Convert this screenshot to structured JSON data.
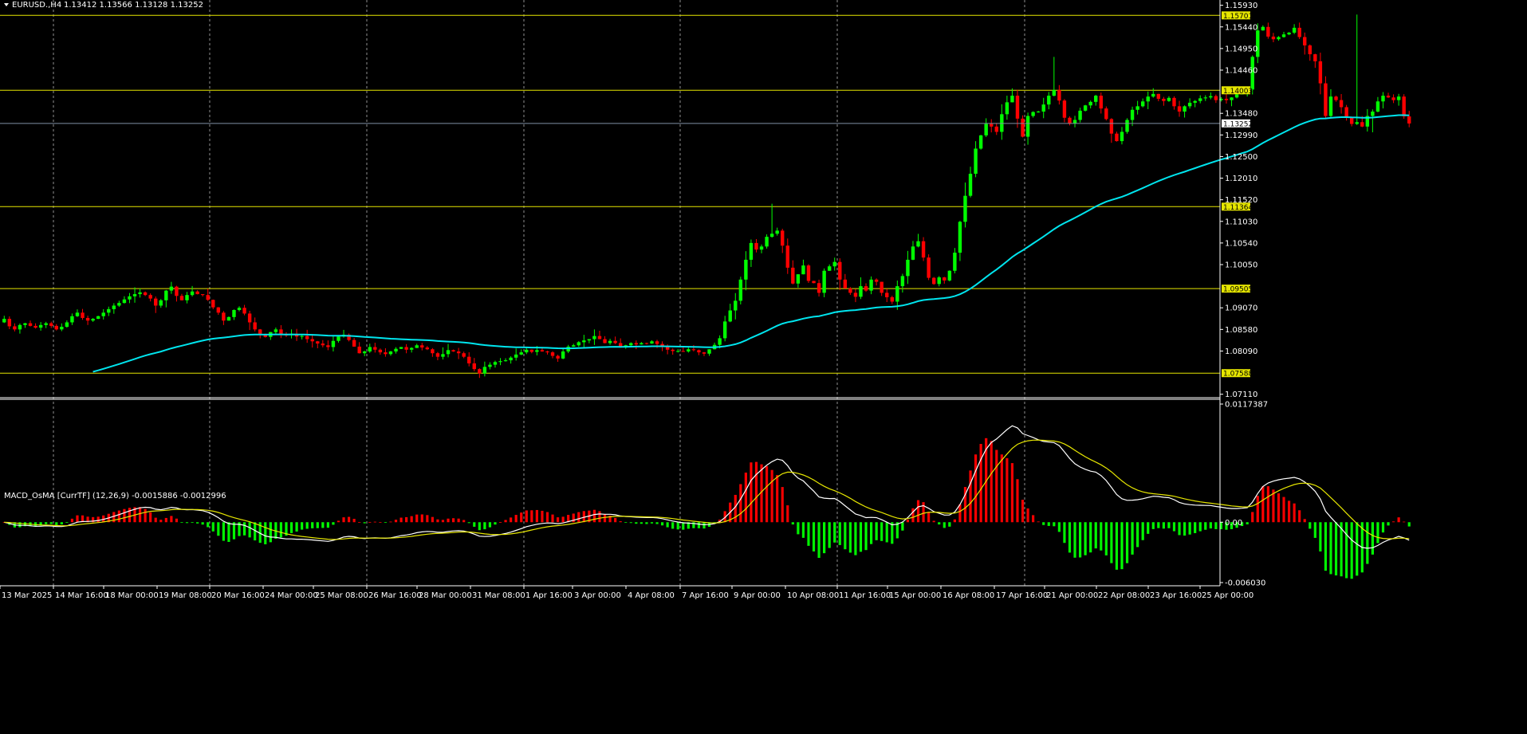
{
  "header": {
    "symbol": "EURUSD.,H4",
    "quote": "1.13412 1.13566 1.13128 1.13252"
  },
  "indicator": {
    "label": "MACD_OsMA [CurrTF] (12,26,9) -0.0015886 -0.0012996"
  },
  "colors": {
    "background": "#000000",
    "bull": "#00ff00",
    "bear": "#ff0000",
    "ma": "#00e5ee",
    "level": "#e6e600",
    "price_line": "#7f8fa6",
    "macd_line": "#ffffff",
    "signal_line": "#e6e600",
    "grid": "#c0c0c0"
  },
  "chart_data": [
    {
      "type": "candlestick",
      "symbol": "EURUSD.",
      "timeframe": "H4",
      "y_tick_labels": [
        "1.15930",
        "1.15440",
        "1.14950",
        "1.14460",
        "1.13480",
        "1.12990",
        "1.12500",
        "1.12010",
        "1.11520",
        "1.11030",
        "1.10540",
        "1.10050",
        "1.09070",
        "1.08580",
        "1.08090",
        "1.07110"
      ],
      "ylim": [
        1.0705,
        1.1605
      ],
      "x_tick_labels": [
        "13 Mar 2025",
        "14 Mar 16:00",
        "18 Mar 00:00",
        "19 Mar 08:00",
        "20 Mar 16:00",
        "24 Mar 00:00",
        "25 Mar 08:00",
        "26 Mar 16:00",
        "28 Mar 00:00",
        "31 Mar 08:00",
        "1 Apr 16:00",
        "3 Apr 00:00",
        "4 Apr 08:00",
        "7 Apr 16:00",
        "9 Apr 00:00",
        "10 Apr 08:00",
        "11 Apr 16:00",
        "15 Apr 00:00",
        "16 Apr 08:00",
        "17 Apr 16:00",
        "21 Apr 00:00",
        "22 Apr 08:00",
        "23 Apr 16:00",
        "25 Apr 00:00"
      ],
      "horizontal_levels": [
        {
          "label": "1.15701",
          "value": 1.15701
        },
        {
          "label": "1.14003",
          "value": 1.14003
        },
        {
          "label": "1.11364",
          "value": 1.11364
        },
        {
          "label": "1.09505",
          "value": 1.09505
        },
        {
          "label": "1.07588",
          "value": 1.07588
        }
      ],
      "current_price": {
        "label": "1.13252",
        "value": 1.13252
      },
      "closes": [
        1.0882,
        1.0865,
        1.0858,
        1.0868,
        1.0872,
        1.0866,
        1.0862,
        1.0868,
        1.0872,
        1.0866,
        1.0858,
        1.0864,
        1.0874,
        1.0888,
        1.0896,
        1.0884,
        1.0878,
        1.0882,
        1.0888,
        1.0896,
        1.0904,
        1.0912,
        1.0918,
        1.0926,
        1.0933,
        1.0938,
        1.0942,
        1.0936,
        1.0928,
        1.0912,
        1.0924,
        1.0946,
        1.0955,
        1.0934,
        1.0924,
        1.0936,
        1.0944,
        1.0938,
        1.0936,
        1.0925,
        1.0908,
        1.0896,
        1.0878,
        1.0886,
        1.0902,
        1.0907,
        1.0894,
        1.0874,
        1.0858,
        1.0848,
        1.0841,
        1.0852,
        1.0858,
        1.0846,
        1.0845,
        1.0848,
        1.0842,
        1.0843,
        1.0836,
        1.0831,
        1.0826,
        1.0822,
        1.0818,
        1.0832,
        1.0842,
        1.0846,
        1.0834,
        1.0819,
        1.0804,
        1.0808,
        1.0818,
        1.0812,
        1.0806,
        1.0802,
        1.0808,
        1.0814,
        1.0818,
        1.0812,
        1.0816,
        1.0822,
        1.0817,
        1.0813,
        1.0804,
        1.0796,
        1.0802,
        1.0811,
        1.0808,
        1.0804,
        1.0796,
        1.0781,
        1.0768,
        1.0758,
        1.0773,
        1.0778,
        1.0784,
        1.0786,
        1.0788,
        1.0794,
        1.0801,
        1.0806,
        1.0812,
        1.0807,
        1.0811,
        1.0808,
        1.0806,
        1.0798,
        1.0792,
        1.0808,
        1.0819,
        1.0822,
        1.0829,
        1.0833,
        1.0836,
        1.0843,
        1.0836,
        1.0827,
        1.0832,
        1.0827,
        1.0817,
        1.0822,
        1.0827,
        1.0824,
        1.0827,
        1.0826,
        1.0831,
        1.0825,
        1.0819,
        1.0812,
        1.0809,
        1.0809,
        1.0808,
        1.0813,
        1.0811,
        1.0806,
        1.0803,
        1.0813,
        1.0823,
        1.0838,
        1.0876,
        1.0901,
        1.0923,
        1.0971,
        1.1016,
        1.1054,
        1.1039,
        1.1046,
        1.1068,
        1.1075,
        1.1082,
        1.1048,
        1.0998,
        1.0962,
        1.0983,
        1.1003,
        1.0968,
        1.0963,
        1.0941,
        1.0991,
        1.1001,
        1.1011,
        1.0971,
        1.0951,
        1.0941,
        1.0932,
        1.0956,
        1.0946,
        1.0971,
        1.0966,
        1.0941,
        1.0931,
        1.0921,
        1.0956,
        1.0979,
        1.1016,
        1.1046,
        1.1058,
        1.1021,
        1.0975,
        1.0961,
        1.0976,
        1.0969,
        1.0991,
        1.1032,
        1.1102,
        1.1161,
        1.1211,
        1.1268,
        1.1298,
        1.1324,
        1.1318,
        1.1306,
        1.1346,
        1.1373,
        1.1388,
        1.1336,
        1.1295,
        1.1342,
        1.1351,
        1.1352,
        1.1368,
        1.1388,
        1.1401,
        1.1377,
        1.1338,
        1.1325,
        1.1333,
        1.1354,
        1.1366,
        1.1374,
        1.1388,
        1.1359,
        1.1335,
        1.1302,
        1.1285,
        1.1306,
        1.1333,
        1.1356,
        1.1364,
        1.1375,
        1.1386,
        1.1392,
        1.1381,
        1.1376,
        1.1383,
        1.1364,
        1.1352,
        1.1364,
        1.1372,
        1.1376,
        1.1382,
        1.1384,
        1.1387,
        1.1378,
        1.1381,
        1.1378,
        1.1384,
        1.1391,
        1.1397,
        1.1402,
        1.1476,
        1.1536,
        1.1544,
        1.1522,
        1.1516,
        1.1521,
        1.1527,
        1.1531,
        1.1542,
        1.1521,
        1.1502,
        1.1482,
        1.1466,
        1.1416,
        1.1342,
        1.1386,
        1.1378,
        1.1362,
        1.1338,
        1.1324,
        1.1328,
        1.1318,
        1.1342,
        1.1352,
        1.1375,
        1.1388,
        1.1384,
        1.1378,
        1.1386,
        1.1341,
        1.1325
      ]
    },
    {
      "type": "bar",
      "name": "MACD_OsMA",
      "params": "(12,26,9)",
      "y_tick_labels": [
        "0.0117387",
        "0.00",
        "-0.006030"
      ],
      "ylim": [
        -0.00603,
        0.0117387
      ],
      "current_values": [
        -0.0015886,
        -0.0012996
      ],
      "note_values": "histogram, MACD line and signal line derived from the candle closes above"
    }
  ]
}
